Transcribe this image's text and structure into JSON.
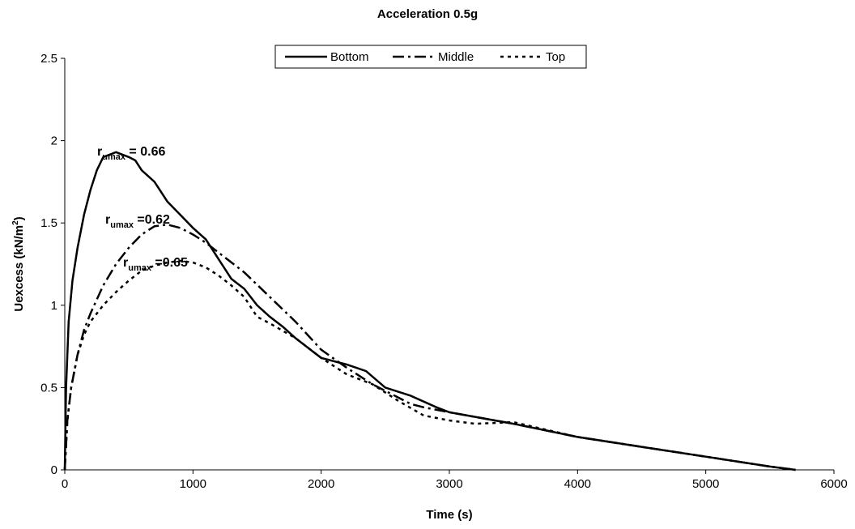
{
  "chart_data": {
    "type": "line",
    "title": "Acceleration 0.5g",
    "xlabel": "Time (s)",
    "ylabel": {
      "text": "Uexcess (kN/m",
      "sup": "2",
      "end": ")"
    },
    "xlim": [
      0,
      6000
    ],
    "xticks": [
      0,
      1000,
      2000,
      3000,
      4000,
      5000,
      6000
    ],
    "ylim": [
      0,
      2.5
    ],
    "yticks": [
      0,
      0.5,
      1,
      1.5,
      2,
      2.5
    ],
    "grid": false,
    "legend": "top",
    "series": [
      {
        "name": "Bottom",
        "color": "#000000",
        "dash": "solid",
        "x": [
          0,
          10,
          30,
          60,
          100,
          150,
          200,
          250,
          300,
          400,
          500,
          550,
          600,
          700,
          800,
          900,
          1000,
          1100,
          1200,
          1300,
          1400,
          1500,
          1600,
          1700,
          1800,
          1900,
          2000,
          2200,
          2350,
          2500,
          2700,
          2900,
          3000,
          3500,
          4000,
          4500,
          5000,
          5500,
          5700
        ],
        "values": [
          0,
          0.5,
          0.9,
          1.15,
          1.35,
          1.55,
          1.7,
          1.82,
          1.9,
          1.93,
          1.9,
          1.88,
          1.82,
          1.75,
          1.63,
          1.55,
          1.47,
          1.4,
          1.28,
          1.16,
          1.1,
          1.0,
          0.93,
          0.87,
          0.8,
          0.74,
          0.68,
          0.64,
          0.6,
          0.5,
          0.45,
          0.38,
          0.35,
          0.28,
          0.2,
          0.14,
          0.08,
          0.02,
          0
        ]
      },
      {
        "name": "Middle",
        "color": "#000000",
        "dash": "dashdot",
        "x": [
          0,
          20,
          50,
          100,
          150,
          200,
          300,
          400,
          500,
          600,
          700,
          800,
          900,
          1000,
          1100,
          1200,
          1400,
          1600,
          1800,
          2000,
          2200,
          2400,
          2600,
          2700,
          2800,
          3000,
          3500,
          4000,
          4500,
          5000,
          5500,
          5700
        ],
        "values": [
          0,
          0.3,
          0.5,
          0.7,
          0.85,
          0.95,
          1.12,
          1.25,
          1.35,
          1.43,
          1.48,
          1.49,
          1.47,
          1.43,
          1.38,
          1.32,
          1.2,
          1.05,
          0.9,
          0.73,
          0.62,
          0.52,
          0.44,
          0.4,
          0.38,
          0.35,
          0.28,
          0.2,
          0.14,
          0.08,
          0.02,
          0
        ]
      },
      {
        "name": "Top",
        "color": "#000000",
        "dash": "dotted",
        "x": [
          0,
          20,
          50,
          100,
          150,
          200,
          300,
          400,
          500,
          600,
          700,
          800,
          900,
          1000,
          1100,
          1200,
          1300,
          1400,
          1500,
          1600,
          1800,
          2000,
          2200,
          2400,
          2600,
          2800,
          3000,
          3200,
          3500,
          4000,
          4500,
          5000,
          5500,
          5700
        ],
        "values": [
          0,
          0.3,
          0.5,
          0.7,
          0.82,
          0.9,
          1.0,
          1.08,
          1.15,
          1.21,
          1.24,
          1.26,
          1.27,
          1.26,
          1.23,
          1.18,
          1.12,
          1.05,
          0.93,
          0.89,
          0.8,
          0.68,
          0.58,
          0.52,
          0.42,
          0.33,
          0.3,
          0.28,
          0.29,
          0.2,
          0.14,
          0.08,
          0.02,
          0
        ]
      }
    ],
    "annotations": [
      {
        "text": "r",
        "sub": "umax",
        "rest": " = 0.66"
      },
      {
        "text": "r",
        "sub": "umax",
        "rest": " =0.62"
      },
      {
        "text": "r",
        "sub": "umax",
        "rest": " =0.65"
      }
    ]
  }
}
